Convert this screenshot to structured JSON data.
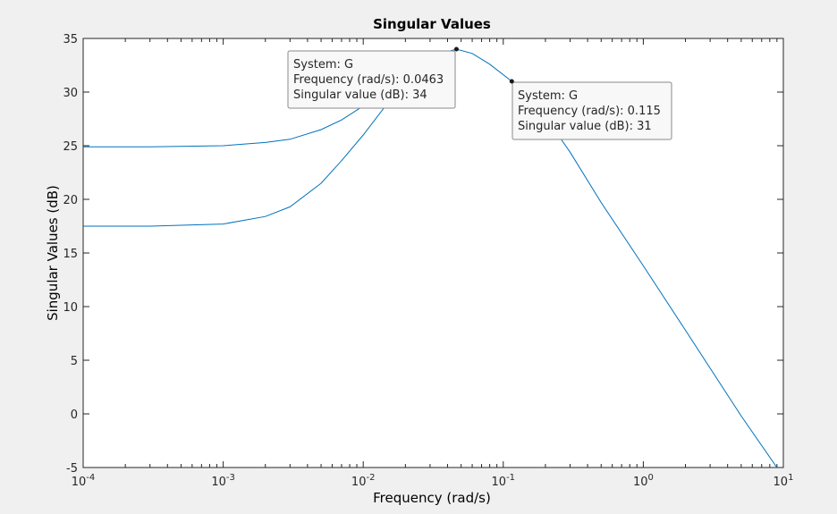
{
  "chart_data": {
    "type": "line",
    "title": "Singular Values",
    "xlabel": "Frequency (rad/s)",
    "ylabel": "Singular Values (dB)",
    "xscale": "log",
    "xlim": [
      0.0001,
      10
    ],
    "ylim": [
      -5,
      35
    ],
    "grid": false,
    "x_ticks": [
      {
        "base": "10",
        "exp": "-4"
      },
      {
        "base": "10",
        "exp": "-3"
      },
      {
        "base": "10",
        "exp": "-2"
      },
      {
        "base": "10",
        "exp": "-1"
      },
      {
        "base": "10",
        "exp": "0"
      },
      {
        "base": "10",
        "exp": "1"
      }
    ],
    "y_ticks": [
      "-5",
      "0",
      "5",
      "10",
      "15",
      "20",
      "25",
      "30",
      "35"
    ],
    "line_color": "#0072bd",
    "series": [
      {
        "x": [
          0.0001,
          0.0003,
          0.001,
          0.002,
          0.003,
          0.005,
          0.007,
          0.01,
          0.015,
          0.02,
          0.03,
          0.0463,
          0.06,
          0.08,
          0.115,
          0.15,
          0.2,
          0.3,
          0.5,
          1,
          2,
          5,
          9
        ],
        "y": [
          24.9,
          24.9,
          25.0,
          25.3,
          25.6,
          26.5,
          27.4,
          28.7,
          30.5,
          31.8,
          33.3,
          34.0,
          33.6,
          32.6,
          31.0,
          29.7,
          27.7,
          24.4,
          19.7,
          13.8,
          7.8,
          -0.2,
          -5.0
        ]
      },
      {
        "x": [
          0.0001,
          0.0003,
          0.001,
          0.002,
          0.003,
          0.005,
          0.007,
          0.01,
          0.015,
          0.02,
          0.025,
          0.03
        ],
        "y": [
          17.5,
          17.5,
          17.7,
          18.4,
          19.3,
          21.5,
          23.6,
          26.0,
          29.0,
          31.4,
          33.0,
          33.8
        ]
      }
    ],
    "datatips": [
      {
        "x": 0.0463,
        "y": 34,
        "lines": [
          "System: G",
          "Frequency (rad/s): 0.0463",
          "Singular value (dB): 34"
        ]
      },
      {
        "x": 0.115,
        "y": 31,
        "lines": [
          "System: G",
          "Frequency (rad/s): 0.115",
          "Singular value (dB): 31"
        ]
      }
    ]
  }
}
